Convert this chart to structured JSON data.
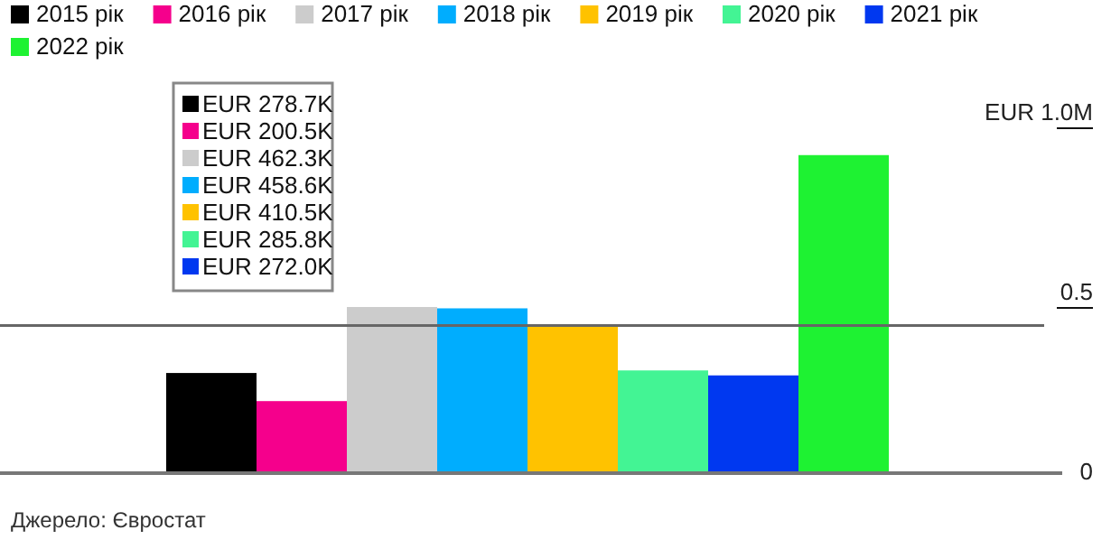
{
  "chart_data": {
    "type": "bar",
    "categories": [
      null
    ],
    "series": [
      {
        "name": "2015 рік",
        "color": "#000000",
        "values": [
          0.2787
        ]
      },
      {
        "name": "2016 рік",
        "color": "#f5008c",
        "values": [
          0.2005
        ]
      },
      {
        "name": "2017 рік",
        "color": "#cccccc",
        "values": [
          0.4623
        ]
      },
      {
        "name": "2018 рік",
        "color": "#00adfe",
        "values": [
          0.4586
        ]
      },
      {
        "name": "2019 рік",
        "color": "#ffc200",
        "values": [
          0.4105
        ]
      },
      {
        "name": "2020 рік",
        "color": "#43f494",
        "values": [
          0.2858
        ]
      },
      {
        "name": "2021 рік",
        "color": "#0038f0",
        "values": [
          0.272
        ]
      },
      {
        "name": "2022 рік",
        "color": "#1ef232",
        "values": [
          0.885
        ]
      }
    ],
    "ylim": [
      0,
      1.0
    ],
    "yticks": [
      0,
      0.5,
      {
        "value": 1.0,
        "label": "EUR 1.0M"
      }
    ],
    "ref_lines": [
      {
        "axis": "y",
        "value": 0.4105,
        "color": "#666666"
      }
    ],
    "legend": "top",
    "annotations": [
      "EUR 278.7K",
      "EUR 200.5K",
      "EUR 462.3K",
      "EUR 458.6K",
      "EUR 410.5K",
      "EUR 285.8K",
      "EUR 272.0K",
      "Джерело: Євростат"
    ]
  }
}
